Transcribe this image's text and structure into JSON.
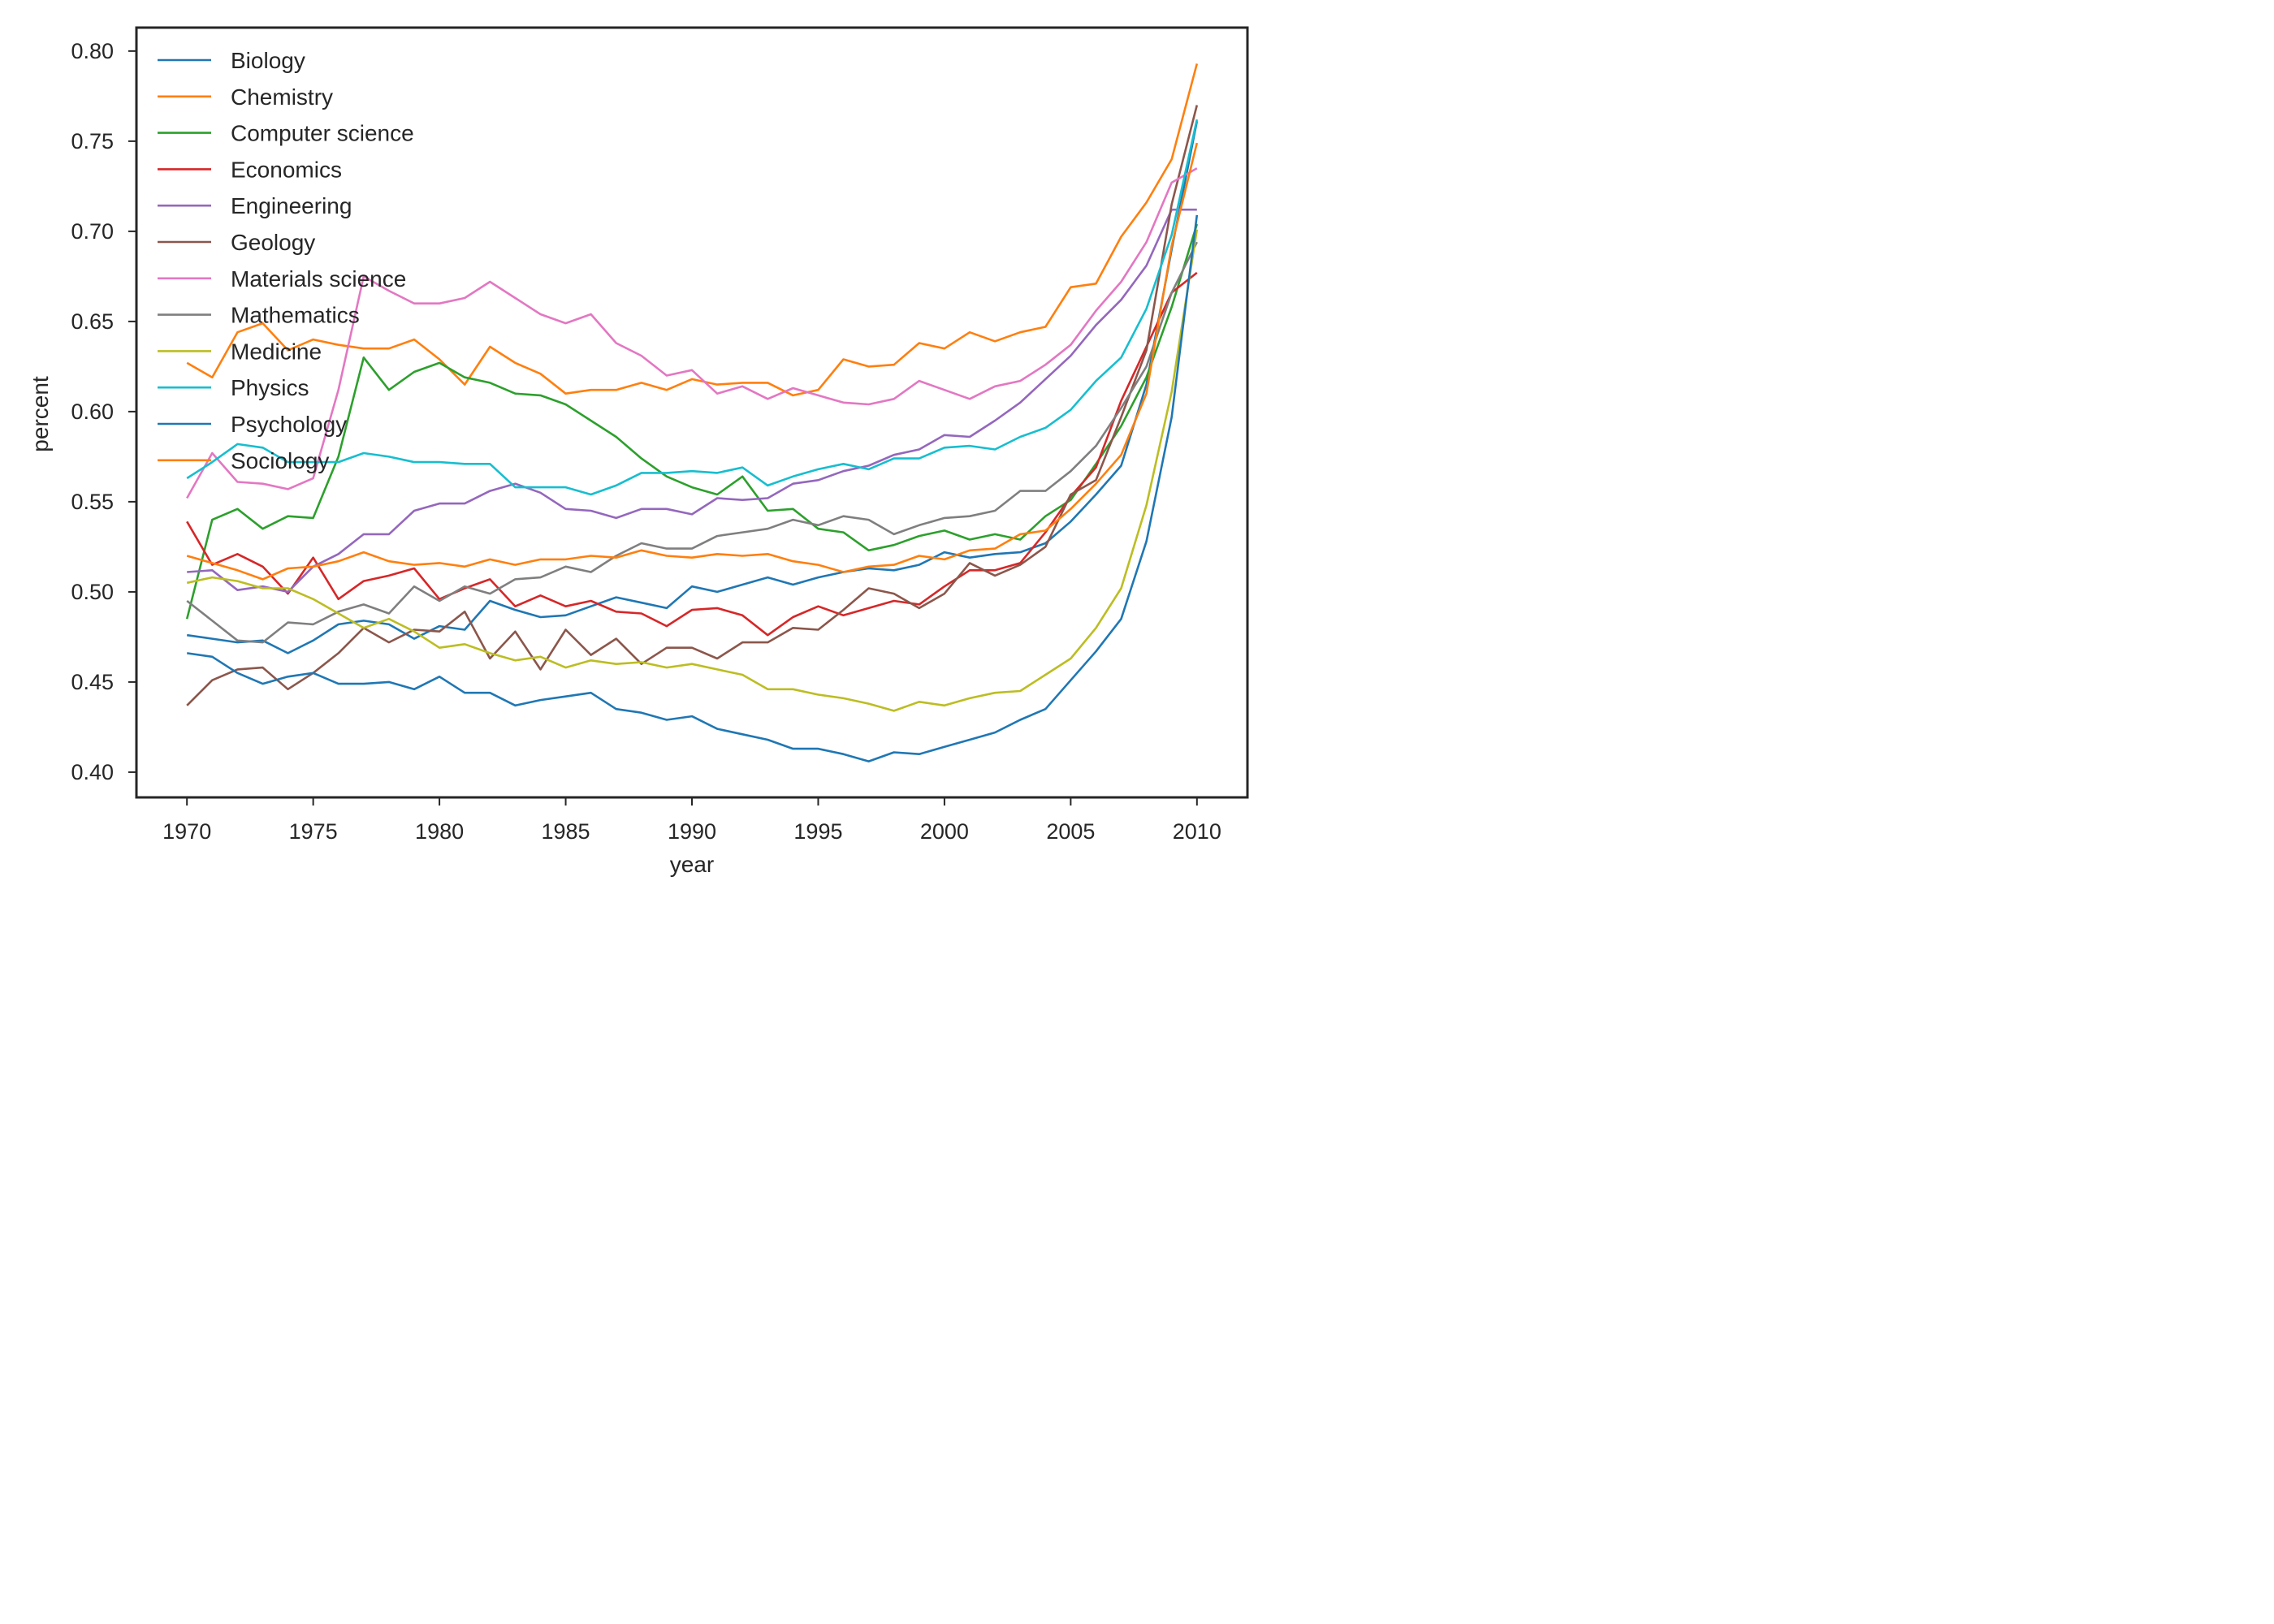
{
  "chart_data": {
    "type": "line",
    "xlabel": "year",
    "ylabel": "percent",
    "xlim": [
      1968,
      2012
    ],
    "ylim": [
      0.386,
      0.813
    ],
    "xticks": [
      1970,
      1975,
      1980,
      1985,
      1990,
      1995,
      2000,
      2005,
      2010
    ],
    "xtick_labels": [
      "1970",
      "1975",
      "1980",
      "1985",
      "1990",
      "1995",
      "2000",
      "2005",
      "2010"
    ],
    "yticks": [
      0.4,
      0.45,
      0.5,
      0.55,
      0.6,
      0.65,
      0.7,
      0.75,
      0.8
    ],
    "ytick_labels": [
      "0.40",
      "0.45",
      "0.50",
      "0.55",
      "0.60",
      "0.65",
      "0.70",
      "0.75",
      "0.80"
    ],
    "legend_position": "upper-left",
    "grid": false,
    "x": [
      1970,
      1971,
      1972,
      1973,
      1974,
      1975,
      1976,
      1977,
      1978,
      1979,
      1980,
      1981,
      1982,
      1983,
      1984,
      1985,
      1986,
      1987,
      1988,
      1989,
      1990,
      1991,
      1992,
      1993,
      1994,
      1995,
      1996,
      1997,
      1998,
      1999,
      2000,
      2001,
      2002,
      2003,
      2004,
      2005,
      2006,
      2007,
      2008,
      2009,
      2010
    ],
    "series": [
      {
        "name": "Biology",
        "color": "#1f77b4",
        "values": [
          0.476,
          0.474,
          0.472,
          0.473,
          0.466,
          0.473,
          0.482,
          0.484,
          0.482,
          0.474,
          0.481,
          0.479,
          0.495,
          0.49,
          0.486,
          0.487,
          0.492,
          0.497,
          0.494,
          0.491,
          0.503,
          0.5,
          0.504,
          0.508,
          0.504,
          0.508,
          0.511,
          0.513,
          0.512,
          0.515,
          0.522,
          0.519,
          0.521,
          0.522,
          0.527,
          0.539,
          0.554,
          0.57,
          0.615,
          0.69,
          0.761
        ]
      },
      {
        "name": "Chemistry",
        "color": "#ff7f0e",
        "values": [
          0.627,
          0.619,
          0.644,
          0.649,
          0.634,
          0.64,
          0.637,
          0.635,
          0.635,
          0.64,
          0.629,
          0.615,
          0.636,
          0.627,
          0.621,
          0.61,
          0.612,
          0.612,
          0.616,
          0.612,
          0.618,
          0.615,
          0.616,
          0.616,
          0.609,
          0.612,
          0.629,
          0.625,
          0.626,
          0.638,
          0.635,
          0.644,
          0.639,
          0.644,
          0.647,
          0.669,
          0.671,
          0.697,
          0.716,
          0.74,
          0.793
        ]
      },
      {
        "name": "Computer science",
        "color": "#2ca02c",
        "values": [
          0.485,
          0.54,
          0.546,
          0.535,
          0.542,
          0.541,
          0.575,
          0.63,
          0.612,
          0.622,
          0.627,
          0.619,
          0.616,
          0.61,
          0.609,
          0.604,
          0.595,
          0.586,
          0.574,
          0.564,
          0.558,
          0.554,
          0.564,
          0.545,
          0.546,
          0.535,
          0.533,
          0.523,
          0.526,
          0.531,
          0.534,
          0.529,
          0.532,
          0.529,
          0.542,
          0.551,
          0.571,
          0.592,
          0.619,
          0.658,
          0.704
        ]
      },
      {
        "name": "Economics",
        "color": "#d62728",
        "values": [
          0.539,
          0.515,
          0.521,
          0.514,
          0.499,
          0.519,
          0.496,
          0.506,
          0.509,
          0.513,
          0.496,
          0.502,
          0.507,
          0.492,
          0.498,
          0.492,
          0.495,
          0.489,
          0.488,
          0.481,
          0.49,
          0.491,
          0.487,
          0.476,
          0.486,
          0.492,
          0.487,
          0.491,
          0.495,
          0.493,
          0.503,
          0.512,
          0.512,
          0.516,
          0.533,
          0.553,
          0.569,
          0.606,
          0.636,
          0.666,
          0.677
        ]
      },
      {
        "name": "Engineering",
        "color": "#9467bd",
        "values": [
          0.511,
          0.512,
          0.501,
          0.503,
          0.5,
          0.514,
          0.521,
          0.532,
          0.532,
          0.545,
          0.549,
          0.549,
          0.556,
          0.56,
          0.555,
          0.546,
          0.545,
          0.541,
          0.546,
          0.546,
          0.543,
          0.552,
          0.551,
          0.552,
          0.56,
          0.562,
          0.567,
          0.57,
          0.576,
          0.579,
          0.587,
          0.586,
          0.595,
          0.605,
          0.618,
          0.631,
          0.648,
          0.662,
          0.681,
          0.712,
          0.712
        ]
      },
      {
        "name": "Geology",
        "color": "#8c564b",
        "values": [
          0.437,
          0.451,
          0.457,
          0.458,
          0.446,
          0.455,
          0.466,
          0.48,
          0.472,
          0.479,
          0.478,
          0.489,
          0.463,
          0.478,
          0.457,
          0.479,
          0.465,
          0.474,
          0.46,
          0.469,
          0.469,
          0.463,
          0.472,
          0.472,
          0.48,
          0.479,
          0.49,
          0.502,
          0.499,
          0.491,
          0.499,
          0.516,
          0.509,
          0.515,
          0.525,
          0.554,
          0.562,
          0.597,
          0.634,
          0.715,
          0.77
        ]
      },
      {
        "name": "Materials science",
        "color": "#e377c2",
        "values": [
          0.552,
          0.577,
          0.561,
          0.56,
          0.557,
          0.563,
          0.612,
          0.675,
          0.667,
          0.66,
          0.66,
          0.663,
          0.672,
          0.663,
          0.654,
          0.649,
          0.654,
          0.638,
          0.631,
          0.62,
          0.623,
          0.61,
          0.614,
          0.607,
          0.613,
          0.609,
          0.605,
          0.604,
          0.607,
          0.617,
          0.612,
          0.607,
          0.614,
          0.617,
          0.626,
          0.637,
          0.656,
          0.672,
          0.694,
          0.727,
          0.735
        ]
      },
      {
        "name": "Mathematics",
        "color": "#7f7f7f",
        "values": [
          0.495,
          0.484,
          0.473,
          0.472,
          0.483,
          0.482,
          0.489,
          0.493,
          0.488,
          0.503,
          0.495,
          0.503,
          0.499,
          0.507,
          0.508,
          0.514,
          0.511,
          0.52,
          0.527,
          0.524,
          0.524,
          0.531,
          0.533,
          0.535,
          0.54,
          0.537,
          0.542,
          0.54,
          0.532,
          0.537,
          0.541,
          0.542,
          0.545,
          0.556,
          0.556,
          0.567,
          0.581,
          0.602,
          0.625,
          0.666,
          0.694
        ]
      },
      {
        "name": "Medicine",
        "color": "#bcbd22",
        "values": [
          0.505,
          0.508,
          0.506,
          0.502,
          0.502,
          0.496,
          0.488,
          0.48,
          0.485,
          0.478,
          0.469,
          0.471,
          0.466,
          0.462,
          0.464,
          0.458,
          0.462,
          0.46,
          0.461,
          0.458,
          0.46,
          0.457,
          0.454,
          0.446,
          0.446,
          0.443,
          0.441,
          0.438,
          0.434,
          0.439,
          0.437,
          0.441,
          0.444,
          0.445,
          0.454,
          0.463,
          0.48,
          0.502,
          0.548,
          0.611,
          0.701
        ]
      },
      {
        "name": "Physics",
        "color": "#17becf",
        "values": [
          0.563,
          0.572,
          0.582,
          0.58,
          0.572,
          0.572,
          0.572,
          0.577,
          0.575,
          0.572,
          0.572,
          0.571,
          0.571,
          0.558,
          0.558,
          0.558,
          0.554,
          0.559,
          0.566,
          0.566,
          0.567,
          0.566,
          0.569,
          0.559,
          0.564,
          0.568,
          0.571,
          0.568,
          0.574,
          0.574,
          0.58,
          0.581,
          0.579,
          0.586,
          0.591,
          0.601,
          0.617,
          0.63,
          0.657,
          0.698,
          0.762
        ]
      },
      {
        "name": "Psychology",
        "color": "#1f77b4",
        "values": [
          0.466,
          0.464,
          0.455,
          0.449,
          0.453,
          0.455,
          0.449,
          0.449,
          0.45,
          0.446,
          0.453,
          0.444,
          0.444,
          0.437,
          0.44,
          0.442,
          0.444,
          0.435,
          0.433,
          0.429,
          0.431,
          0.424,
          0.421,
          0.418,
          0.413,
          0.413,
          0.41,
          0.406,
          0.411,
          0.41,
          0.414,
          0.418,
          0.422,
          0.429,
          0.435,
          0.451,
          0.467,
          0.485,
          0.528,
          0.597,
          0.709
        ]
      },
      {
        "name": "Sociology",
        "color": "#ff7f0e",
        "values": [
          0.52,
          0.516,
          0.512,
          0.507,
          0.513,
          0.514,
          0.517,
          0.522,
          0.517,
          0.515,
          0.516,
          0.514,
          0.518,
          0.515,
          0.518,
          0.518,
          0.52,
          0.519,
          0.523,
          0.52,
          0.519,
          0.521,
          0.52,
          0.521,
          0.517,
          0.515,
          0.511,
          0.514,
          0.515,
          0.52,
          0.518,
          0.523,
          0.524,
          0.532,
          0.534,
          0.546,
          0.56,
          0.576,
          0.61,
          0.692,
          0.749
        ]
      }
    ]
  }
}
